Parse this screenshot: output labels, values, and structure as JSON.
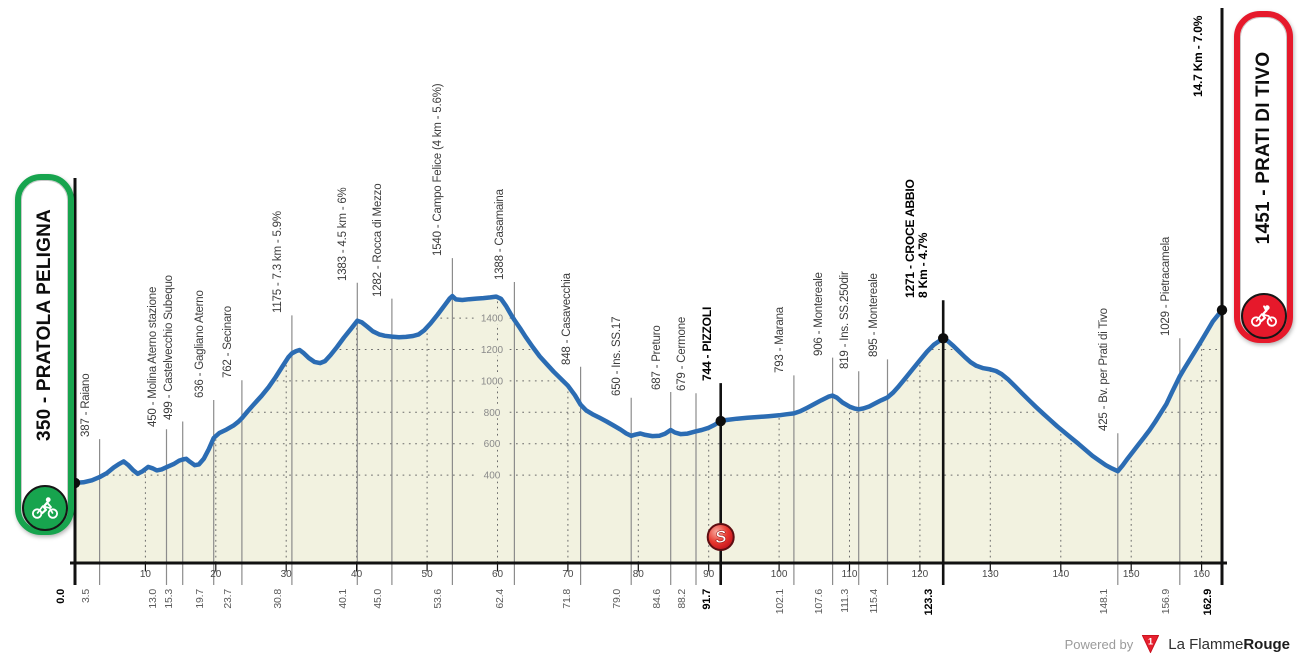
{
  "chart_data": {
    "type": "area",
    "title": "Stage elevation profile",
    "x_range": [
      0,
      162.9
    ],
    "x_ticks": [
      10,
      20,
      30,
      40,
      50,
      60,
      70,
      80,
      90,
      100,
      110,
      120,
      130,
      140,
      150,
      160
    ],
    "y_gridlines": [
      400,
      600,
      800,
      1000,
      1200,
      1400
    ],
    "colors": {
      "profile": "#2b6cb3",
      "area": "#f2f2e0",
      "grid": "#6b6b6b",
      "leader": "#8c8c8c",
      "axis": "#111111",
      "start_badge": "#17a44e",
      "finish_badge": "#e6192b",
      "sprint_red": "#e8382f"
    },
    "start": {
      "km": 0,
      "km_label": "0.0",
      "elev": 350,
      "badge": "350 - PRATOLA PELIGNA"
    },
    "finish": {
      "km": 162.9,
      "km_label": "162.9",
      "elev": 1451,
      "badge": "1451 - PRATI DI TIVO",
      "side_label": "14.7 Km - 7.0%"
    },
    "sprint": {
      "km": 91.7,
      "symbol": "S"
    },
    "waypoints": [
      {
        "km": 3.5,
        "km_label": "3.5",
        "elev": 387,
        "label": "387 - Raiano"
      },
      {
        "km": 13.0,
        "km_label": "13.0",
        "elev": 450,
        "label": "450 - Molina Aterno stazione"
      },
      {
        "km": 15.3,
        "km_label": "15.3",
        "elev": 499,
        "label": "499 - Castelvecchio Subequo"
      },
      {
        "km": 19.7,
        "km_label": "19.7",
        "elev": 636,
        "label": "636 - Gagliano Aterno"
      },
      {
        "km": 23.7,
        "km_label": "23.7",
        "elev": 762,
        "label": "762 - Secinaro"
      },
      {
        "km": 30.8,
        "km_label": "30.8",
        "elev": 1175,
        "label": "1175 - 7.3 km - 5.9%"
      },
      {
        "km": 40.1,
        "km_label": "40.1",
        "elev": 1383,
        "label": "1383 - 4.5 km - 6%"
      },
      {
        "km": 45.0,
        "km_label": "45.0",
        "elev": 1282,
        "label": "1282 - Rocca di Mezzo"
      },
      {
        "km": 53.6,
        "km_label": "53.6",
        "elev": 1540,
        "label": "1540 - Campo Felice (4 km - 5.6%)"
      },
      {
        "km": 62.4,
        "km_label": "62.4",
        "elev": 1388,
        "label": "1388 - Casamaina"
      },
      {
        "km": 71.8,
        "km_label": "71.8",
        "elev": 848,
        "label": "848 - Casavecchia"
      },
      {
        "km": 79.0,
        "km_label": "79.0",
        "elev": 650,
        "label": "650 - Ins. SS.17"
      },
      {
        "km": 84.6,
        "km_label": "84.6",
        "elev": 687,
        "label": "687 - Preturo"
      },
      {
        "km": 88.2,
        "km_label": "88.2",
        "elev": 679,
        "label": "679 - Cermone"
      },
      {
        "km": 91.7,
        "km_label": "91.7",
        "elev": 744,
        "label": "744 - PIZZOLI",
        "bold": true,
        "dot": true
      },
      {
        "km": 102.1,
        "km_label": "102.1",
        "elev": 793,
        "label": "793 - Marana"
      },
      {
        "km": 107.6,
        "km_label": "107.6",
        "elev": 906,
        "label": "906 - Montereale"
      },
      {
        "km": 111.3,
        "km_label": "111.3",
        "elev": 819,
        "label": "819 - Ins. SS.250dir"
      },
      {
        "km": 115.4,
        "km_label": "115.4",
        "elev": 895,
        "label": "895 - Montereale"
      },
      {
        "km": 123.3,
        "km_label": "123.3",
        "elev": 1271,
        "label": "1271 - CROCE ABBIO",
        "label2": "8 Km - 4.7%",
        "bold": true,
        "dot": true
      },
      {
        "km": 148.1,
        "km_label": "148.1",
        "elev": 425,
        "label": "425 - Bv. per Prati di Tivo"
      },
      {
        "km": 156.9,
        "km_label": "156.9",
        "elev": 1029,
        "label": "1029 - Pietracamela"
      }
    ],
    "profile": [
      [
        0,
        350
      ],
      [
        1.2,
        354
      ],
      [
        2.4,
        367
      ],
      [
        3.5,
        387
      ],
      [
        4.5,
        412
      ],
      [
        5.5,
        448
      ],
      [
        6.3,
        472
      ],
      [
        6.9,
        487
      ],
      [
        7.6,
        462
      ],
      [
        8.3,
        430
      ],
      [
        8.9,
        408
      ],
      [
        9.6,
        425
      ],
      [
        10.4,
        452
      ],
      [
        11,
        443
      ],
      [
        11.6,
        430
      ],
      [
        12.3,
        436
      ],
      [
        13,
        450
      ],
      [
        14,
        470
      ],
      [
        14.8,
        492
      ],
      [
        15.3,
        499
      ],
      [
        15.8,
        504
      ],
      [
        16.3,
        485
      ],
      [
        17,
        463
      ],
      [
        17.6,
        468
      ],
      [
        18.3,
        505
      ],
      [
        19,
        565
      ],
      [
        19.7,
        636
      ],
      [
        20.5,
        668
      ],
      [
        21.5,
        690
      ],
      [
        22.5,
        715
      ],
      [
        23.2,
        740
      ],
      [
        23.7,
        762
      ],
      [
        24.5,
        805
      ],
      [
        25.5,
        855
      ],
      [
        26.5,
        905
      ],
      [
        27.5,
        960
      ],
      [
        28.5,
        1025
      ],
      [
        29.5,
        1095
      ],
      [
        30.3,
        1150
      ],
      [
        30.8,
        1175
      ],
      [
        31.4,
        1190
      ],
      [
        31.9,
        1197
      ],
      [
        32.5,
        1176
      ],
      [
        33.2,
        1146
      ],
      [
        34,
        1121
      ],
      [
        34.8,
        1113
      ],
      [
        35.5,
        1126
      ],
      [
        36.3,
        1165
      ],
      [
        37.2,
        1215
      ],
      [
        38.2,
        1276
      ],
      [
        39.2,
        1332
      ],
      [
        40.1,
        1383
      ],
      [
        40.7,
        1374
      ],
      [
        41.5,
        1346
      ],
      [
        42.3,
        1316
      ],
      [
        43.2,
        1296
      ],
      [
        44,
        1287
      ],
      [
        45,
        1282
      ],
      [
        46,
        1278
      ],
      [
        47,
        1280
      ],
      [
        48,
        1286
      ],
      [
        48.8,
        1296
      ],
      [
        49.6,
        1322
      ],
      [
        50.5,
        1366
      ],
      [
        51.5,
        1422
      ],
      [
        52.5,
        1482
      ],
      [
        53.2,
        1524
      ],
      [
        53.6,
        1540
      ],
      [
        54.1,
        1519
      ],
      [
        55,
        1515
      ],
      [
        56,
        1520
      ],
      [
        57,
        1524
      ],
      [
        58,
        1527
      ],
      [
        59,
        1532
      ],
      [
        59.8,
        1537
      ],
      [
        60.5,
        1523
      ],
      [
        61.2,
        1478
      ],
      [
        62,
        1416
      ],
      [
        62.4,
        1388
      ],
      [
        63.2,
        1336
      ],
      [
        64,
        1281
      ],
      [
        65,
        1216
      ],
      [
        66,
        1156
      ],
      [
        67,
        1106
      ],
      [
        68,
        1058
      ],
      [
        69,
        1014
      ],
      [
        70,
        969
      ],
      [
        71,
        909
      ],
      [
        71.8,
        848
      ],
      [
        72.6,
        812
      ],
      [
        73.5,
        788
      ],
      [
        74.5,
        765
      ],
      [
        75.5,
        741
      ],
      [
        76.5,
        716
      ],
      [
        77.5,
        689
      ],
      [
        78.3,
        665
      ],
      [
        79,
        650
      ],
      [
        79.6,
        658
      ],
      [
        80.3,
        665
      ],
      [
        81,
        656
      ],
      [
        82,
        648
      ],
      [
        83,
        651
      ],
      [
        83.8,
        663
      ],
      [
        84.6,
        687
      ],
      [
        85.2,
        671
      ],
      [
        86,
        661
      ],
      [
        87,
        664
      ],
      [
        88.2,
        679
      ],
      [
        89,
        687
      ],
      [
        90,
        701
      ],
      [
        90.8,
        719
      ],
      [
        91.7,
        744
      ],
      [
        92.5,
        751
      ],
      [
        94,
        759
      ],
      [
        95.5,
        765
      ],
      [
        97,
        770
      ],
      [
        98.5,
        775
      ],
      [
        100,
        781
      ],
      [
        101,
        787
      ],
      [
        102.1,
        793
      ],
      [
        103,
        806
      ],
      [
        104,
        829
      ],
      [
        105,
        853
      ],
      [
        106,
        877
      ],
      [
        107,
        899
      ],
      [
        107.6,
        906
      ],
      [
        108.2,
        893
      ],
      [
        109,
        862
      ],
      [
        110,
        836
      ],
      [
        110.7,
        824
      ],
      [
        111.3,
        819
      ],
      [
        112,
        825
      ],
      [
        112.8,
        837
      ],
      [
        113.6,
        856
      ],
      [
        114.5,
        876
      ],
      [
        115.4,
        895
      ],
      [
        116.2,
        926
      ],
      [
        117,
        966
      ],
      [
        118,
        1021
      ],
      [
        119,
        1076
      ],
      [
        120,
        1131
      ],
      [
        121,
        1186
      ],
      [
        122,
        1231
      ],
      [
        123.3,
        1271
      ],
      [
        124,
        1252
      ],
      [
        124.8,
        1221
      ],
      [
        125.6,
        1186
      ],
      [
        126.4,
        1151
      ],
      [
        127.2,
        1119
      ],
      [
        128,
        1096
      ],
      [
        129,
        1081
      ],
      [
        130,
        1073
      ],
      [
        130.8,
        1063
      ],
      [
        131.6,
        1043
      ],
      [
        132.5,
        1011
      ],
      [
        133.5,
        966
      ],
      [
        134.5,
        921
      ],
      [
        135.5,
        876
      ],
      [
        136.5,
        833
      ],
      [
        137.5,
        791
      ],
      [
        138.5,
        751
      ],
      [
        139.5,
        711
      ],
      [
        140.5,
        673
      ],
      [
        141.5,
        636
      ],
      [
        142.5,
        599
      ],
      [
        143.5,
        561
      ],
      [
        144.5,
        523
      ],
      [
        145.5,
        491
      ],
      [
        146.4,
        463
      ],
      [
        147.3,
        441
      ],
      [
        148.1,
        425
      ],
      [
        148.8,
        462
      ],
      [
        149.5,
        505
      ],
      [
        150.3,
        552
      ],
      [
        151,
        592
      ],
      [
        151.8,
        638
      ],
      [
        152.6,
        685
      ],
      [
        153.4,
        738
      ],
      [
        154.2,
        795
      ],
      [
        155,
        852
      ],
      [
        155.8,
        928
      ],
      [
        156.9,
        1029
      ],
      [
        157.6,
        1082
      ],
      [
        158.4,
        1140
      ],
      [
        159.2,
        1198
      ],
      [
        160,
        1258
      ],
      [
        160.8,
        1318
      ],
      [
        161.6,
        1378
      ],
      [
        162.9,
        1451
      ]
    ]
  },
  "footer": {
    "powered_by": "Powered by",
    "logo_glyph": "1",
    "brand_regular": "La Flamme",
    "brand_bold": "Rouge"
  }
}
